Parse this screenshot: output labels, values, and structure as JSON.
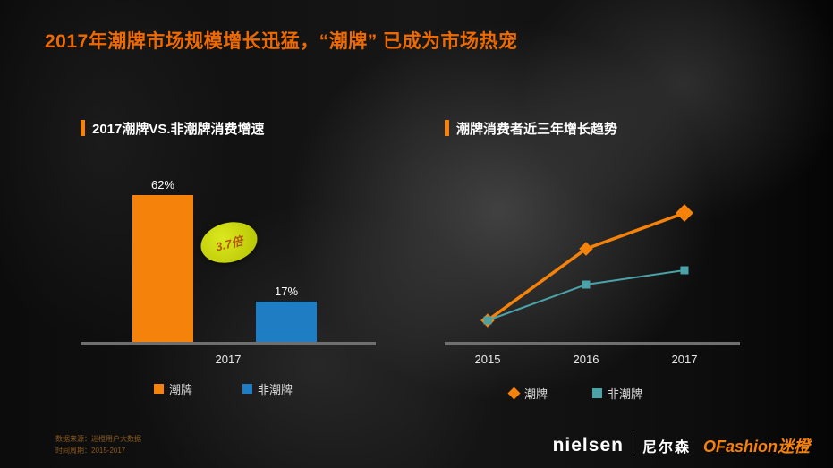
{
  "page": {
    "title": "2017年潮牌市场规模增长迅猛，“潮牌” 已成为市场热宠"
  },
  "chart_data": [
    {
      "type": "bar",
      "title": "2017潮牌VS.非潮牌消费增速",
      "categories": [
        "潮牌",
        "非潮牌"
      ],
      "values": [
        62,
        17
      ],
      "value_labels": [
        "62%",
        "17%"
      ],
      "colors": [
        "#F5820A",
        "#1F7DC4"
      ],
      "x_axis_label": "2017",
      "annotation": "3.7倍",
      "ylim": [
        0,
        70
      ],
      "grid": false,
      "legend_position": "bottom",
      "legend": [
        {
          "label": "潮牌",
          "color": "#F5820A",
          "marker": "square"
        },
        {
          "label": "非潮牌",
          "color": "#1F7DC4",
          "marker": "square"
        }
      ]
    },
    {
      "type": "line",
      "title": "潮牌消费者近三年增长趋势",
      "x": [
        "2015",
        "2016",
        "2017"
      ],
      "ylim": [
        0,
        100
      ],
      "grid": false,
      "legend_position": "bottom",
      "series": [
        {
          "name": "潮牌",
          "values": [
            15,
            65,
            90
          ],
          "color": "#F5820A",
          "marker": "diamond"
        },
        {
          "name": "非潮牌",
          "values": [
            15,
            40,
            50
          ],
          "color": "#4AA3A8",
          "marker": "square"
        }
      ]
    }
  ],
  "footer": {
    "source": "数据来源：迷橙用户大数据",
    "period": "时间周期：2015-2017",
    "nielsen": "nielsen",
    "nielsen_cn": "尼尔森",
    "ofashion": "OFashion迷橙"
  },
  "colors": {
    "accent_orange": "#F5820A",
    "title_orange": "#EE6A00",
    "bar_blue": "#1F7DC4",
    "line_teal": "#4AA3A8",
    "badge_green": "#C8D400",
    "axis_gray": "#6F6F6F"
  }
}
